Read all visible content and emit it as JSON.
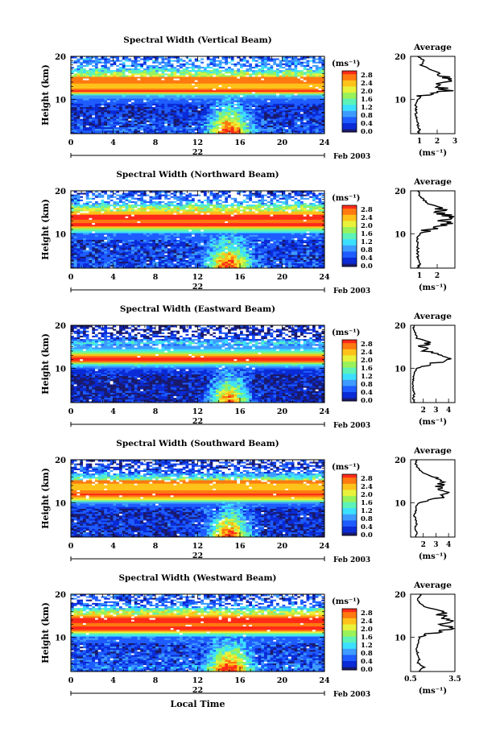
{
  "units_label": "(ms⁻¹)",
  "date_label": "Feb 2003",
  "xlabel": "Local Time",
  "ylabel": "Height (km)",
  "day_label": "22",
  "colorbar_ticks": [
    "2.8",
    "2.4",
    "2.0",
    "1.6",
    "1.2",
    "0.8",
    "0.4",
    "0.0"
  ],
  "colors": {
    "palette": [
      "#1a1a6b",
      "#0a2bd6",
      "#1e5cff",
      "#3e9bff",
      "#3ce0ff",
      "#5cf2b8",
      "#9af25a",
      "#e8f23a",
      "#ffc21a",
      "#ff7a10",
      "#ff2a1a"
    ],
    "high_saturation": "#ff2a1a",
    "missing_data": "#ffffff"
  },
  "chart_data": [
    {
      "type": "heatmap",
      "title": "Spectral Width (Vertical Beam)",
      "x_ticks": [
        0,
        4,
        8,
        12,
        16,
        20,
        24
      ],
      "y_ticks": [
        10,
        20
      ],
      "ylim": [
        2,
        20
      ],
      "xlim": [
        0,
        24
      ],
      "clim": [
        0,
        3.0
      ],
      "xlabel": "Local Time",
      "ylabel": "Height (km)",
      "average_profile": {
        "title": "Average",
        "xlabel": "(ms⁻¹)",
        "x_ticks": [
          "1",
          "2",
          "3"
        ],
        "y_ticks": [
          10,
          20
        ],
        "xlim": [
          0.5,
          3
        ],
        "height_km": [
          2,
          3,
          4,
          5,
          6,
          7,
          8,
          9,
          10,
          11,
          12,
          13,
          14,
          15,
          16,
          17,
          18,
          19,
          20
        ],
        "width_ms": [
          0.9,
          1.0,
          0.9,
          0.9,
          0.8,
          0.8,
          0.8,
          0.8,
          0.9,
          1.3,
          2.6,
          2.1,
          2.4,
          2.5,
          2.2,
          1.6,
          1.1,
          1.3,
          0.9
        ]
      }
    },
    {
      "type": "heatmap",
      "title": "Spectral Width (Northward Beam)",
      "x_ticks": [
        0,
        4,
        8,
        12,
        16,
        20,
        24
      ],
      "y_ticks": [
        10,
        20
      ],
      "ylim": [
        2,
        20
      ],
      "xlim": [
        0,
        24
      ],
      "clim": [
        0,
        3.0
      ],
      "average_profile": {
        "title": "Average",
        "xlabel": "(ms⁻¹)",
        "x_ticks": [
          "1",
          "2"
        ],
        "y_ticks": [
          10,
          20
        ],
        "xlim": [
          0.5,
          3
        ],
        "height_km": [
          2,
          3,
          4,
          5,
          6,
          7,
          8,
          9,
          10,
          11,
          12,
          13,
          14,
          15,
          16,
          17,
          18,
          19,
          20
        ],
        "width_ms": [
          0.9,
          1.0,
          0.9,
          0.9,
          0.9,
          0.9,
          0.9,
          0.9,
          1.0,
          1.6,
          2.6,
          2.4,
          2.7,
          2.1,
          2.3,
          1.5,
          1.2,
          1.0,
          0.9
        ]
      }
    },
    {
      "type": "heatmap",
      "title": "Spectral Width (Eastward Beam)",
      "x_ticks": [
        0,
        4,
        8,
        12,
        16,
        20,
        24
      ],
      "y_ticks": [
        10,
        20
      ],
      "ylim": [
        2,
        20
      ],
      "xlim": [
        0,
        24
      ],
      "clim": [
        0,
        3.0
      ],
      "average_profile": {
        "title": "Average",
        "xlabel": "(ms⁻¹)",
        "x_ticks": [
          "2",
          "3",
          "4"
        ],
        "y_ticks": [
          10,
          20
        ],
        "xlim": [
          1,
          4.5
        ],
        "height_km": [
          2,
          3,
          4,
          5,
          6,
          7,
          8,
          9,
          10,
          11,
          12,
          13,
          14,
          15,
          16,
          17,
          18,
          19,
          20
        ],
        "width_ms": [
          1.3,
          1.2,
          1.3,
          1.2,
          1.2,
          1.2,
          1.2,
          1.3,
          1.5,
          2.5,
          4.2,
          3.6,
          2.3,
          1.8,
          2.6,
          1.5,
          1.4,
          1.2,
          1.3
        ]
      }
    },
    {
      "type": "heatmap",
      "title": "Spectral Width (Southward Beam)",
      "x_ticks": [
        0,
        4,
        8,
        12,
        16,
        20,
        24
      ],
      "y_ticks": [
        10,
        20
      ],
      "ylim": [
        2,
        20
      ],
      "xlim": [
        0,
        24
      ],
      "clim": [
        0,
        3.0
      ],
      "average_profile": {
        "title": "Average",
        "xlabel": "(ms⁻¹)",
        "x_ticks": [
          "2",
          "3",
          "4"
        ],
        "y_ticks": [
          10,
          20
        ],
        "xlim": [
          1,
          4.5
        ],
        "height_km": [
          2,
          3,
          4,
          5,
          6,
          7,
          8,
          9,
          10,
          11,
          12,
          13,
          14,
          15,
          16,
          17,
          18,
          19,
          20
        ],
        "width_ms": [
          1.4,
          1.5,
          1.3,
          1.5,
          1.4,
          1.3,
          1.4,
          1.4,
          1.7,
          3.2,
          3.8,
          3.5,
          3.3,
          3.6,
          2.8,
          1.9,
          1.6,
          1.4,
          1.5
        ]
      }
    },
    {
      "type": "heatmap",
      "title": "Spectral Width (Westward Beam)",
      "x_ticks": [
        0,
        4,
        8,
        12,
        16,
        20,
        24
      ],
      "y_ticks": [
        10,
        20
      ],
      "ylim": [
        2,
        20
      ],
      "xlim": [
        0,
        24
      ],
      "clim": [
        0,
        3.0
      ],
      "average_profile": {
        "title": "Average",
        "xlabel": "(ms⁻¹)",
        "x_ticks": [
          "0.5",
          "3.5"
        ],
        "y_ticks": [
          10,
          20
        ],
        "xlim": [
          0.5,
          3.5
        ],
        "height_km": [
          2,
          3,
          4,
          5,
          6,
          7,
          8,
          9,
          10,
          11,
          12,
          13,
          14,
          15,
          16,
          17,
          18,
          19,
          20
        ],
        "width_ms": [
          1.0,
          1.4,
          1.0,
          1.1,
          1.0,
          0.9,
          1.0,
          1.0,
          1.1,
          2.0,
          3.1,
          2.8,
          3.2,
          2.6,
          2.7,
          1.5,
          1.1,
          1.0,
          1.2
        ]
      }
    }
  ]
}
